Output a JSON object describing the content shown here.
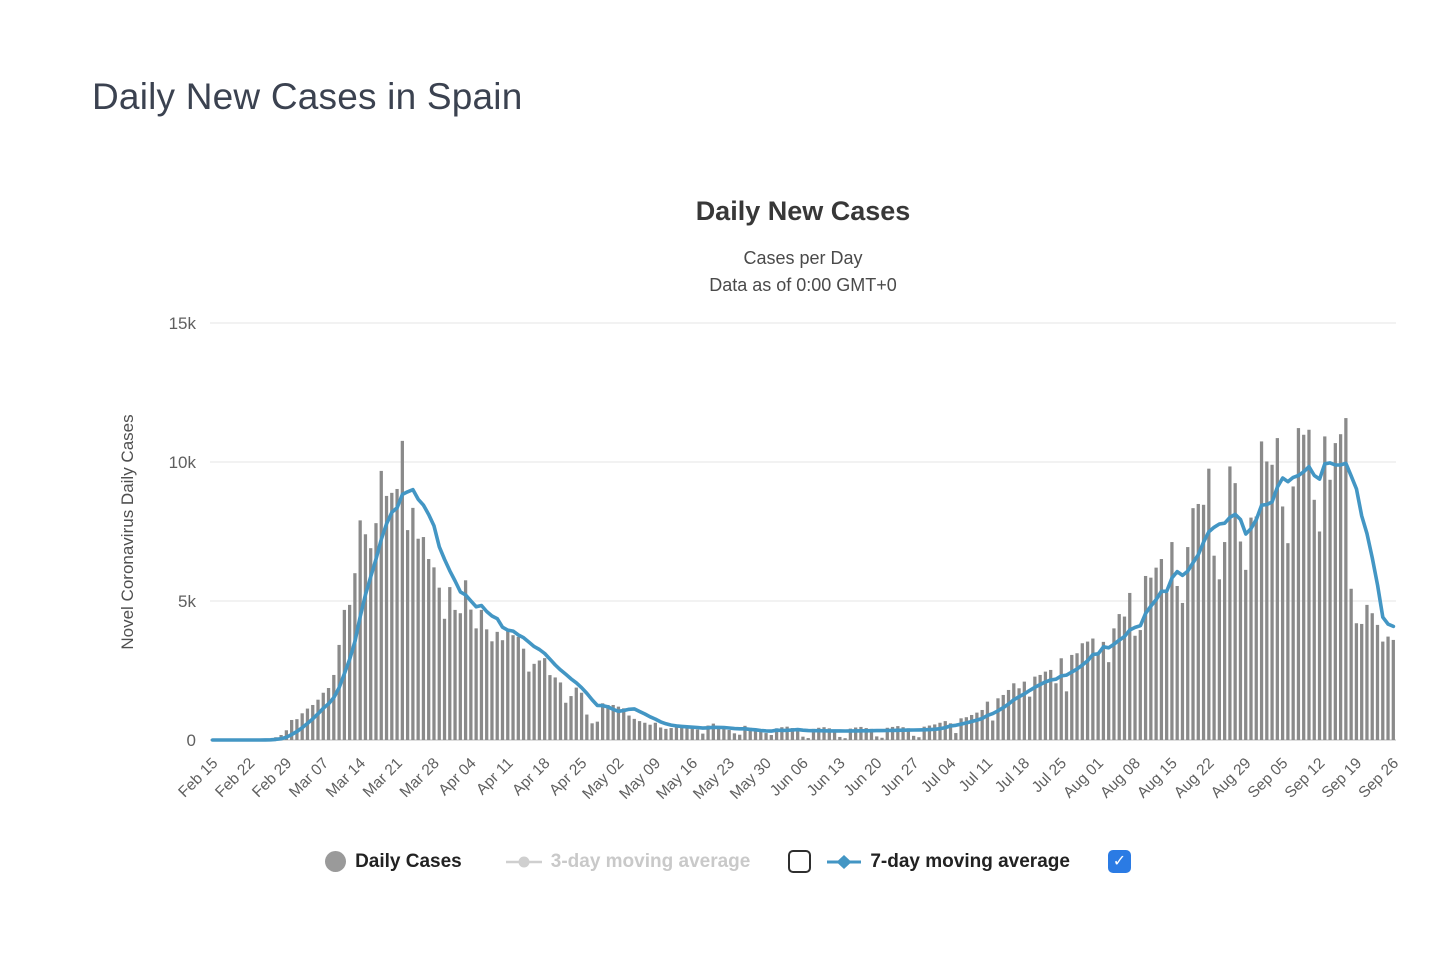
{
  "page": {
    "title": "Daily New Cases in Spain"
  },
  "chart": {
    "title": "Daily New Cases",
    "subtitle_line1": "Cases per Day",
    "subtitle_line2": "Data as of 0:00 GMT+0",
    "y_axis_title": "Novel Coronavirus Daily Cases"
  },
  "legend": {
    "items": [
      {
        "label": "Daily Cases",
        "marker": "circle",
        "enabled": true
      },
      {
        "label": "3-day moving average",
        "marker": "line-circle",
        "enabled": false
      },
      {
        "label": "7-day moving average",
        "marker": "line-diamond",
        "enabled": true
      }
    ],
    "checkbox_3day_checked": false,
    "checkbox_7day_checked": true
  },
  "icons": {
    "checkmark": "✓"
  },
  "colors": {
    "bar": "#8a8a8a",
    "moving_average_line": "#4396c4",
    "gridline": "#e6e6e6",
    "axis_line": "#d0d0d0",
    "axis_text": "#5f5f5f",
    "legend_disabled": "#c9c9c9",
    "checkbox_checked": "#2b7be4",
    "legend_circle": "#9a9a9a"
  },
  "chart_data": {
    "type": "bar",
    "title": "Daily New Cases",
    "subtitle": [
      "Cases per Day",
      "Data as of 0:00 GMT+0"
    ],
    "xlabel": "",
    "ylabel": "Novel Coronavirus Daily Cases",
    "ylim": [
      0,
      15000
    ],
    "y_tick_values": [
      0,
      5000,
      10000,
      15000
    ],
    "y_tick_labels": [
      "0",
      "5k",
      "10k",
      "15k"
    ],
    "grid": true,
    "legend_position": "bottom",
    "x_start": "Feb 15",
    "x_end": "Sep 26",
    "x_tick_every_days": 7,
    "x_tick_labels": [
      "Feb 15",
      "Feb 22",
      "Feb 29",
      "Mar 07",
      "Mar 14",
      "Mar 21",
      "Mar 28",
      "Apr 04",
      "Apr 11",
      "Apr 18",
      "Apr 25",
      "May 02",
      "May 09",
      "May 16",
      "May 23",
      "May 30",
      "Jun 06",
      "Jun 13",
      "Jun 20",
      "Jun 27",
      "Jul 04",
      "Jul 11",
      "Jul 18",
      "Jul 25",
      "Aug 01",
      "Aug 08",
      "Aug 15",
      "Aug 22",
      "Aug 29",
      "Sep 05",
      "Sep 12",
      "Sep 19",
      "Sep 26"
    ],
    "series": [
      {
        "name": "Daily Cases",
        "type": "bar",
        "color": "#8a8a8a",
        "visible": true,
        "values": [
          0,
          0,
          0,
          0,
          0,
          1,
          1,
          2,
          2,
          4,
          10,
          30,
          100,
          180,
          350,
          720,
          750,
          960,
          1130,
          1260,
          1450,
          1700,
          1870,
          2340,
          3420,
          4680,
          4860,
          6000,
          7900,
          7400,
          6900,
          7800,
          9680,
          8780,
          8890,
          9030,
          10760,
          7550,
          8350,
          7240,
          7300,
          6510,
          6210,
          5480,
          4360,
          5500,
          4680,
          4560,
          5745,
          4690,
          4015,
          4680,
          3980,
          3550,
          3890,
          3590,
          3955,
          3770,
          3710,
          3285,
          2460,
          2740,
          2860,
          2945,
          2335,
          2250,
          2070,
          1340,
          1580,
          1885,
          1700,
          915,
          600,
          660,
          1320,
          1260,
          1260,
          1200,
          1140,
          880,
          760,
          680,
          620,
          550,
          620,
          450,
          400,
          430,
          480,
          500,
          456,
          510,
          380,
          230,
          520,
          590,
          480,
          450,
          360,
          240,
          190,
          510,
          440,
          370,
          290,
          250,
          180,
          420,
          460,
          480,
          430,
          390,
          120,
          70,
          400,
          440,
          460,
          420,
          380,
          110,
          65,
          410,
          450,
          470,
          430,
          400,
          130,
          80,
          440,
          470,
          500,
          460,
          420,
          150,
          100,
          480,
          520,
          560,
          620,
          680,
          600,
          250,
          780,
          820,
          900,
          985,
          1080,
          1380,
          700,
          1500,
          1620,
          1800,
          2040,
          1860,
          2100,
          1560,
          2280,
          2340,
          2460,
          2520,
          2040,
          2940,
          1750,
          3060,
          3120,
          3480,
          3540,
          3650,
          3100,
          3530,
          2800,
          4015,
          4530,
          4440,
          5290,
          3750,
          3955,
          5900,
          5840,
          6200,
          6510,
          5300,
          7120,
          5540,
          4930,
          6940,
          8340,
          8490,
          8460,
          9760,
          6630,
          5780,
          7120,
          9840,
          9240,
          7140,
          6120,
          8000,
          8040,
          10740,
          10020,
          9900,
          10860,
          8400,
          7080,
          9120,
          11220,
          10980,
          11160,
          8640,
          7500,
          10920,
          9360,
          10680,
          11000,
          11580,
          5440,
          4200,
          4175,
          4860,
          4560,
          4140,
          3540,
          3720,
          3600
        ]
      },
      {
        "name": "3-day moving average",
        "type": "line",
        "color": "#c9c9c9",
        "visible": false
      },
      {
        "name": "7-day moving average",
        "type": "line",
        "color": "#4396c4",
        "visible": true,
        "derived": "trailing 7-day mean of Daily Cases"
      }
    ]
  }
}
